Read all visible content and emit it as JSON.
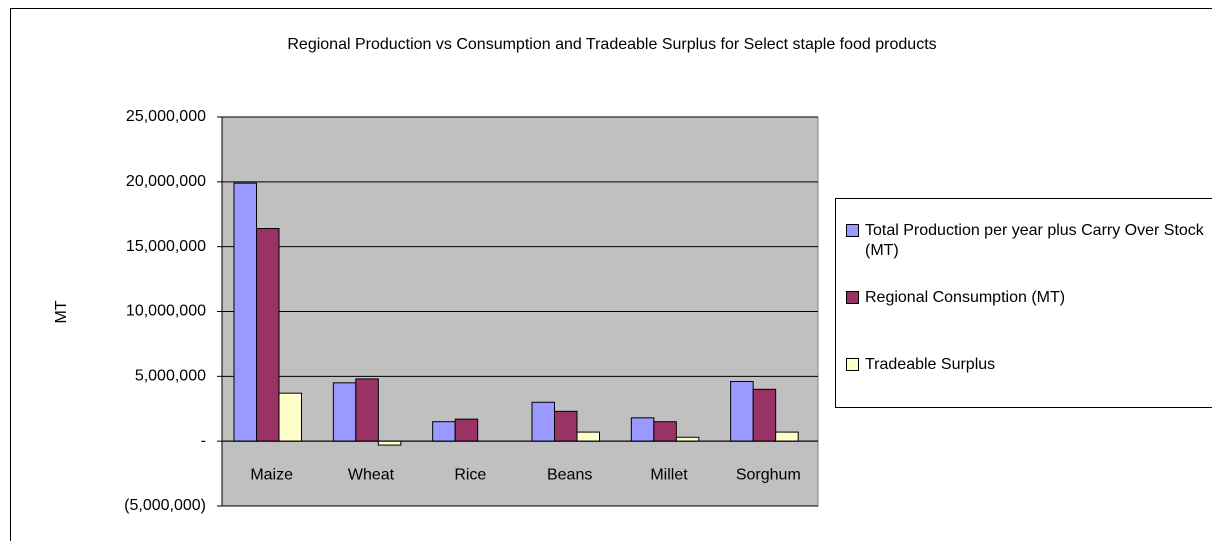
{
  "chart_data": {
    "type": "bar",
    "title": "Regional Production vs Consumption and Tradeable Surplus for Select staple food products",
    "y_label": "MT",
    "categories": [
      "Maize",
      "Wheat",
      "Rice",
      "Beans",
      "Millet",
      "Sorghum"
    ],
    "series": [
      {
        "name": "Total Production per year plus Carry Over Stock (MT)",
        "color": "#9999ff",
        "values": [
          19900000,
          4500000,
          1500000,
          3000000,
          1800000,
          4600000
        ]
      },
      {
        "name": "Regional Consumption (MT)",
        "color": "#993366",
        "values": [
          16400000,
          4800000,
          1700000,
          2300000,
          1500000,
          4000000
        ]
      },
      {
        "name": "Tradeable Surplus",
        "color": "#ffffcc",
        "values": [
          3700000,
          -300000,
          0,
          700000,
          300000,
          700000
        ]
      }
    ],
    "ylim": [
      -5000000,
      25000000
    ],
    "yticks": [
      {
        "value": -5000000,
        "label": "(5,000,000)"
      },
      {
        "value": 0,
        "label": "-"
      },
      {
        "value": 5000000,
        "label": "5,000,000"
      },
      {
        "value": 10000000,
        "label": "10,000,000"
      },
      {
        "value": 15000000,
        "label": "15,000,000"
      },
      {
        "value": 20000000,
        "label": "20,000,000"
      },
      {
        "value": 25000000,
        "label": "25,000,000"
      }
    ],
    "grid": true,
    "plot_background": "#c0c0c0",
    "legend": "right"
  }
}
